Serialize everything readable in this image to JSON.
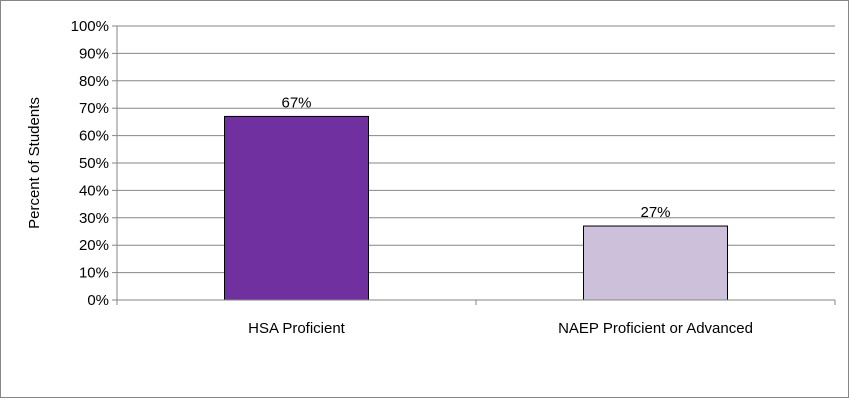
{
  "chart_data": {
    "type": "bar",
    "categories": [
      "HSA Proficient",
      "NAEP Proficient or Advanced"
    ],
    "values": [
      67,
      27
    ],
    "data_labels": [
      "67%",
      "27%"
    ],
    "colors": [
      "#7030a0",
      "#ccc0da"
    ],
    "title": "",
    "xlabel": "",
    "ylabel": "Percent of Students",
    "ylim": [
      0,
      100
    ],
    "yticks": [
      "0%",
      "10%",
      "20%",
      "30%",
      "40%",
      "50%",
      "60%",
      "70%",
      "80%",
      "90%",
      "100%"
    ],
    "grid": true,
    "legend": false
  }
}
